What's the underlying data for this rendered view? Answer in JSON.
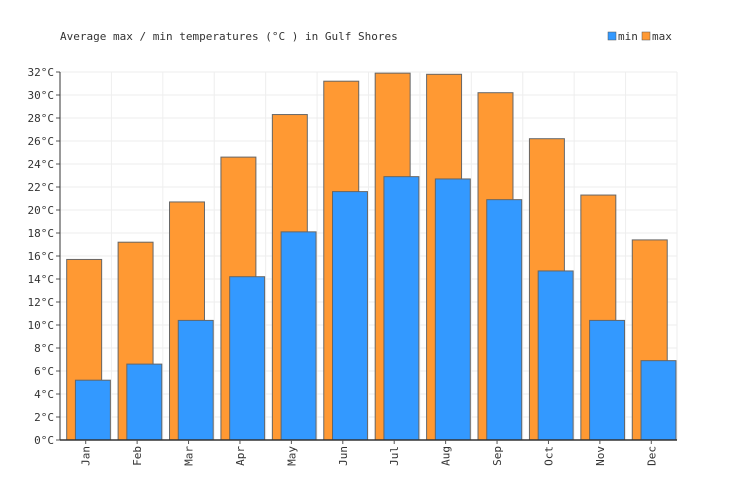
{
  "chart_data": {
    "type": "bar",
    "title": "Average max / min temperatures (°C ) in Gulf Shores",
    "y_tick_suffix": "°C",
    "categories": [
      "Jan",
      "Feb",
      "Mar",
      "Apr",
      "May",
      "Jun",
      "Jul",
      "Aug",
      "Sep",
      "Oct",
      "Nov",
      "Dec"
    ],
    "series": [
      {
        "name": "min",
        "color": "#3399ff",
        "values": [
          5.2,
          6.6,
          10.4,
          14.2,
          18.1,
          21.6,
          22.9,
          22.7,
          20.9,
          14.7,
          10.4,
          6.9
        ]
      },
      {
        "name": "max",
        "color": "#ff9933",
        "values": [
          15.7,
          17.2,
          20.7,
          24.6,
          28.3,
          31.2,
          31.9,
          31.8,
          30.2,
          26.2,
          21.3,
          17.4
        ]
      }
    ],
    "ylim": [
      0,
      32
    ],
    "ytick_step": 2,
    "grid": true,
    "legend_position": "top-right",
    "overlapping_bars": true
  }
}
